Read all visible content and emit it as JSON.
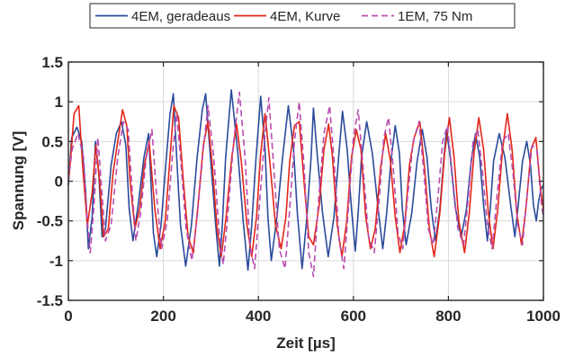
{
  "chart_data": {
    "type": "line",
    "xlabel": "Zeit [µs]",
    "ylabel": "Spannung [V]",
    "xlim": [
      0,
      1000
    ],
    "ylim": [
      -1.5,
      1.5
    ],
    "xticks": [
      0,
      200,
      400,
      600,
      800,
      1000
    ],
    "yticks": [
      -1.5,
      -1,
      -0.5,
      0,
      0.5,
      1,
      1.5
    ],
    "xtick_labels": [
      "0",
      "200",
      "400",
      "600",
      "800",
      "1000"
    ],
    "ytick_labels": [
      "-1.5",
      "-1",
      "-0.5",
      "0",
      "0.5",
      "1",
      "1.5"
    ],
    "grid": true,
    "legend_position": "top-center",
    "series": [
      {
        "name": "4EM, geradeaus",
        "color": "#2b4b9b",
        "dash": "solid",
        "x": [
          0,
          7,
          18,
          28,
          36,
          42,
          50,
          57,
          64,
          71,
          78,
          90,
          101,
          112,
          121,
          128,
          136,
          147,
          159,
          169,
          179,
          186,
          195,
          205,
          214,
          221,
          228,
          236,
          247,
          259,
          271,
          282,
          289,
          299,
          310,
          318,
          324,
          331,
          343,
          356,
          368,
          378,
          386,
          395,
          405,
          414,
          420,
          427,
          439,
          451,
          463,
          474,
          482,
          492,
          502,
          511,
          516,
          523,
          535,
          547,
          559,
          569,
          577,
          587,
          596,
          604,
          610,
          617,
          628,
          640,
          652,
          662,
          670,
          679,
          688,
          697,
          703,
          711,
          723,
          734,
          745,
          755,
          764,
          773,
          782,
          790,
          796,
          804,
          815,
          827,
          838,
          848,
          857,
          866,
          874,
          882,
          888,
          895,
          907,
          919,
          931,
          940,
          947,
          956,
          965,
          973,
          979,
          985,
          990,
          995,
          1000
        ],
        "y": [
          -0.05,
          0.55,
          0.68,
          0.5,
          -0.1,
          -0.85,
          -0.45,
          0.5,
          0.1,
          -0.7,
          -0.6,
          0.2,
          0.6,
          0.75,
          0.45,
          -0.35,
          -0.75,
          -0.3,
          0.3,
          0.6,
          -0.65,
          -0.95,
          -0.55,
          0.2,
          0.85,
          1.1,
          0.3,
          -0.55,
          -1.07,
          -0.55,
          0.3,
          0.9,
          1.1,
          0.3,
          -0.55,
          -1.07,
          -0.55,
          0.3,
          1.15,
          0.4,
          -0.5,
          -1.12,
          -0.55,
          0.3,
          1.07,
          0.4,
          -0.45,
          -1.0,
          -0.45,
          0.3,
          0.95,
          0.4,
          -0.4,
          -1.1,
          -0.45,
          0.3,
          0.92,
          0.4,
          -0.4,
          -0.95,
          -0.45,
          0.3,
          0.88,
          0.4,
          -0.35,
          -0.88,
          -0.4,
          0.3,
          0.75,
          0.35,
          -0.35,
          -0.85,
          -0.4,
          0.25,
          0.7,
          0.35,
          -0.35,
          -0.8,
          -0.4,
          0.25,
          0.65,
          0.3,
          -0.35,
          -0.75,
          -0.35,
          0.25,
          0.65,
          0.3,
          -0.35,
          -0.7,
          -0.35,
          0.25,
          0.6,
          0.3,
          -0.3,
          -0.75,
          -0.35,
          0.25,
          0.6,
          0.3,
          -0.3,
          -0.7,
          -0.3,
          0.25,
          0.5,
          0.2,
          -0.3,
          -0.5,
          -0.25,
          -0.1,
          -0.05
        ]
      },
      {
        "name": "4EM, Kurve",
        "color": "#e32619",
        "dash": "solid",
        "x": [
          0,
          5,
          12,
          22,
          30,
          40,
          50,
          58,
          66,
          74,
          84,
          94,
          104,
          114,
          123,
          130,
          140,
          150,
          160,
          170,
          182,
          193,
          204,
          214,
          222,
          232,
          242,
          252,
          263,
          273,
          284,
          294,
          303,
          313,
          322,
          332,
          344,
          354,
          364,
          376,
          386,
          396,
          405,
          414,
          424,
          436,
          448,
          458,
          466,
          476,
          486,
          496,
          506,
          516,
          528,
          538,
          548,
          556,
          566,
          576,
          586,
          596,
          606,
          616,
          626,
          636,
          646,
          658,
          668,
          678,
          688,
          698,
          708,
          718,
          728,
          740,
          750,
          760,
          770,
          782,
          792,
          802,
          812,
          822,
          834,
          844,
          854,
          864,
          874,
          884,
          894,
          904,
          914,
          924,
          934,
          944,
          954,
          964,
          974,
          984,
          994,
          1000
        ],
        "y": [
          0.0,
          0.3,
          0.85,
          0.95,
          0.2,
          -0.55,
          -0.15,
          0.45,
          0.0,
          -0.7,
          -0.6,
          0.1,
          0.5,
          0.9,
          0.7,
          0.0,
          -0.6,
          -0.35,
          0.2,
          0.5,
          -0.35,
          -0.85,
          -0.5,
          0.3,
          0.95,
          0.8,
          0.0,
          -0.7,
          -0.9,
          -0.3,
          0.45,
          0.75,
          0.2,
          -0.6,
          -0.95,
          -0.45,
          0.3,
          0.72,
          0.25,
          -0.55,
          -0.95,
          -0.45,
          0.35,
          0.85,
          0.25,
          -0.55,
          -0.85,
          -0.45,
          0.25,
          0.7,
          0.75,
          0.0,
          -0.7,
          -0.8,
          -0.3,
          0.4,
          0.72,
          0.3,
          -0.55,
          -0.95,
          -0.5,
          0.3,
          0.65,
          0.4,
          -0.45,
          -0.85,
          -0.6,
          0.2,
          0.6,
          0.25,
          -0.45,
          -0.9,
          -0.55,
          0.2,
          0.55,
          0.75,
          0.15,
          -0.6,
          -0.95,
          -0.4,
          0.35,
          0.8,
          0.3,
          -0.5,
          -0.9,
          -0.4,
          0.35,
          0.8,
          0.4,
          -0.4,
          -0.85,
          -0.35,
          0.4,
          0.85,
          0.4,
          -0.4,
          -0.8,
          -0.3,
          0.4,
          0.55,
          -0.1,
          -0.35
        ]
      },
      {
        "name": "1EM, 75 Nm",
        "color": "#b94db0",
        "dash": "dashed",
        "x": [
          0,
          8,
          20,
          32,
          40,
          46,
          54,
          62,
          70,
          78,
          90,
          104,
          116,
          126,
          133,
          142,
          152,
          164,
          176,
          186,
          196,
          208,
          220,
          228,
          236,
          248,
          260,
          272,
          284,
          294,
          306,
          318,
          326,
          336,
          348,
          360,
          372,
          382,
          392,
          402,
          414,
          422,
          432,
          444,
          456,
          466,
          476,
          486,
          496,
          506,
          516,
          526,
          538,
          550,
          560,
          570,
          580,
          590,
          600,
          610,
          620,
          632,
          644,
          654,
          664,
          674,
          684,
          694,
          704,
          714,
          726,
          738,
          748,
          758,
          768,
          778,
          788,
          798,
          808,
          820,
          832,
          842,
          852,
          862,
          872,
          882,
          892,
          902,
          914,
          926,
          936,
          946,
          956,
          966,
          976,
          986,
          996,
          1000
        ],
        "y": [
          0.0,
          0.4,
          0.6,
          0.3,
          -0.5,
          -0.9,
          -0.3,
          0.55,
          -0.1,
          -0.75,
          -0.55,
          0.3,
          0.75,
          0.65,
          0.0,
          -0.75,
          -0.4,
          0.3,
          0.65,
          -0.2,
          -0.85,
          -0.5,
          0.4,
          0.85,
          0.3,
          -0.6,
          -1.0,
          -0.4,
          0.4,
          0.95,
          0.3,
          -0.7,
          -1.05,
          -0.4,
          0.5,
          1.12,
          0.3,
          -0.8,
          -1.1,
          -0.3,
          0.6,
          1.05,
          0.2,
          -0.85,
          -1.1,
          -0.35,
          0.5,
          1.0,
          0.2,
          -0.9,
          -1.2,
          -0.3,
          0.6,
          0.95,
          0.2,
          -0.75,
          -1.1,
          -0.3,
          0.55,
          0.9,
          0.2,
          -0.7,
          -0.9,
          -0.25,
          0.55,
          0.8,
          0.15,
          -0.65,
          -0.85,
          -0.2,
          0.5,
          0.75,
          0.15,
          -0.6,
          -0.8,
          -0.2,
          0.5,
          0.7,
          0.1,
          -0.6,
          -0.8,
          -0.2,
          0.5,
          0.65,
          0.1,
          -0.55,
          -0.85,
          -0.2,
          0.5,
          0.6,
          0.1,
          -0.55,
          -0.8,
          -0.15,
          0.45,
          0.4,
          -0.3,
          -0.45
        ]
      }
    ]
  }
}
